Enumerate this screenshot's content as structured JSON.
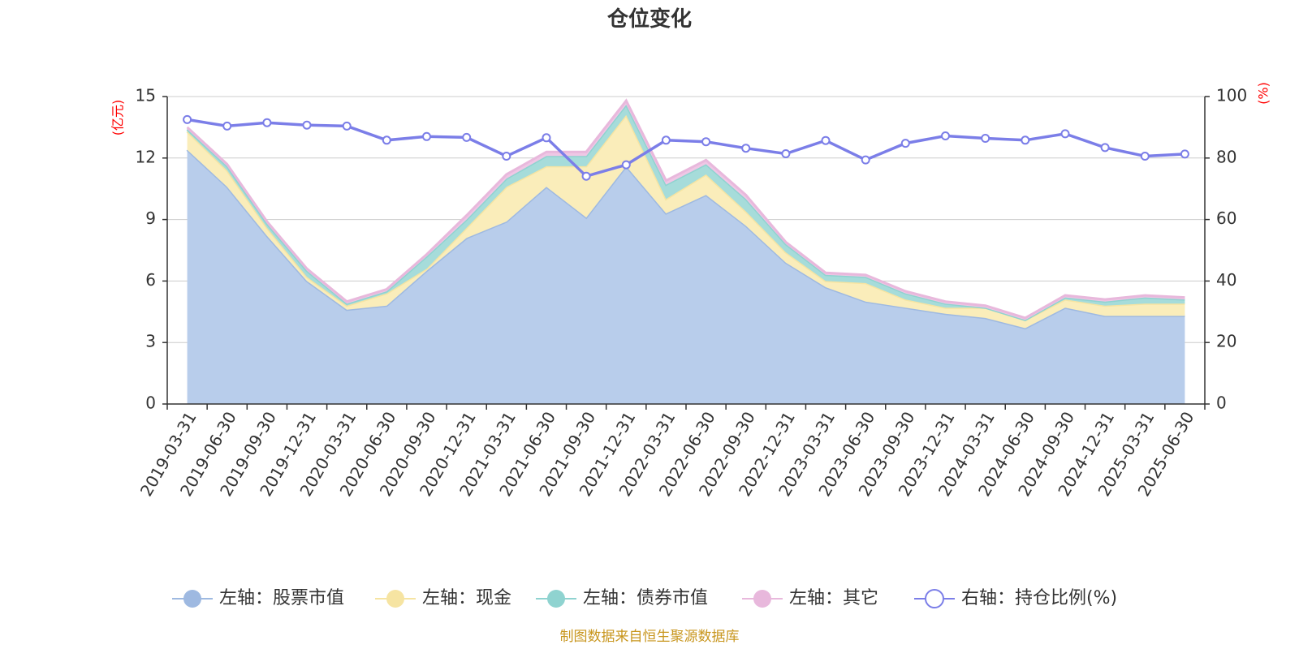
{
  "chart_data": {
    "type": "area",
    "title": "仓位变化",
    "source": "制图数据来自恒生聚源数据库",
    "left_axis": {
      "unit": "(亿元)",
      "min": 0,
      "max": 15,
      "ticks": [
        "0",
        "3",
        "6",
        "9",
        "12",
        "15"
      ]
    },
    "right_axis": {
      "unit": "(%)",
      "min": 0,
      "max": 100,
      "ticks": [
        "0",
        "20",
        "40",
        "60",
        "80",
        "100"
      ]
    },
    "grid": true,
    "legend_position": "bottom",
    "categories": [
      "2019-03-31",
      "2019-06-30",
      "2019-09-30",
      "2019-12-31",
      "2020-03-31",
      "2020-06-30",
      "2020-09-30",
      "2020-12-31",
      "2021-03-31",
      "2021-06-30",
      "2021-09-30",
      "2021-12-31",
      "2022-03-31",
      "2022-06-30",
      "2022-09-30",
      "2022-12-31",
      "2023-03-31",
      "2023-06-30",
      "2023-09-30",
      "2023-12-31",
      "2024-03-31",
      "2024-06-30",
      "2024-09-30",
      "2024-12-31",
      "2025-03-31",
      "2025-06-30"
    ],
    "stacked_series": [
      {
        "name": "左轴：股票市值",
        "color": "#9eb9e1",
        "fill": "#b8cdeb",
        "values": [
          12.4,
          10.6,
          8.2,
          6.0,
          4.6,
          4.8,
          6.5,
          8.1,
          8.9,
          10.6,
          9.1,
          11.6,
          9.3,
          10.2,
          8.7,
          6.9,
          5.7,
          5.0,
          4.7,
          4.4,
          4.2,
          3.7,
          4.7,
          4.3,
          4.3,
          4.3
        ]
      },
      {
        "name": "左轴：现金",
        "color": "#f6e4a2",
        "fill": "#faedba",
        "values": [
          0.9,
          0.8,
          0.4,
          0.2,
          0.2,
          0.6,
          0.1,
          0.5,
          1.7,
          1.0,
          2.5,
          2.5,
          0.7,
          1.0,
          0.7,
          0.5,
          0.3,
          0.9,
          0.4,
          0.3,
          0.5,
          0.4,
          0.4,
          0.5,
          0.6,
          0.6
        ]
      },
      {
        "name": "左轴：债券市值",
        "color": "#8fd3d0",
        "fill": "#a6dcda",
        "values": [
          0.1,
          0.2,
          0.2,
          0.3,
          0.1,
          0.1,
          0.6,
          0.4,
          0.4,
          0.5,
          0.5,
          0.5,
          0.7,
          0.5,
          0.6,
          0.4,
          0.3,
          0.3,
          0.3,
          0.2,
          0.0,
          0.0,
          0.1,
          0.2,
          0.3,
          0.2
        ]
      },
      {
        "name": "左轴：其它",
        "color": "#e8b8dc",
        "fill": "#efc7e5",
        "values": [
          0.1,
          0.1,
          0.1,
          0.1,
          0.1,
          0.1,
          0.1,
          0.2,
          0.2,
          0.2,
          0.2,
          0.2,
          0.2,
          0.2,
          0.2,
          0.1,
          0.1,
          0.1,
          0.1,
          0.1,
          0.1,
          0.1,
          0.1,
          0.1,
          0.1,
          0.1
        ]
      }
    ],
    "line_series": {
      "name": "右轴：持仓比例(%)",
      "color": "#7b7ee8",
      "values": [
        92.5,
        90.4,
        91.5,
        90.7,
        90.4,
        85.8,
        87.0,
        86.7,
        80.6,
        86.6,
        74.1,
        77.8,
        85.8,
        85.3,
        83.2,
        81.4,
        85.7,
        79.4,
        84.8,
        87.2,
        86.4,
        85.8,
        87.9,
        83.4,
        80.6,
        81.3
      ]
    }
  }
}
